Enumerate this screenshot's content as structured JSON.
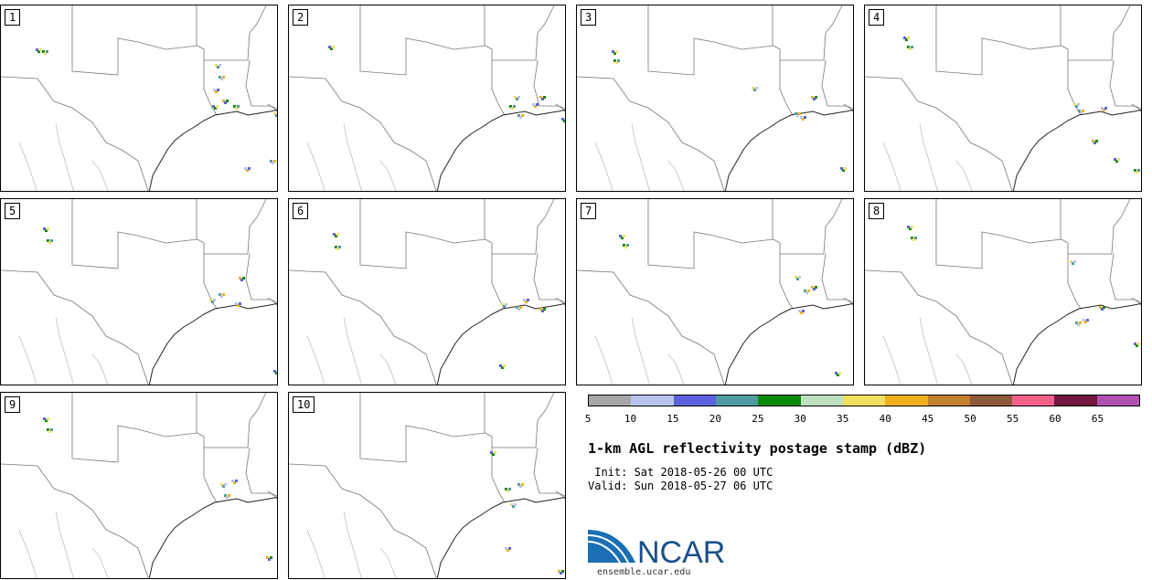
{
  "panels": [
    {
      "label": "1"
    },
    {
      "label": "2"
    },
    {
      "label": "3"
    },
    {
      "label": "4"
    },
    {
      "label": "5"
    },
    {
      "label": "6"
    },
    {
      "label": "7"
    },
    {
      "label": "8"
    },
    {
      "label": "9"
    },
    {
      "label": "10"
    }
  ],
  "colorbar": {
    "colors": [
      "#a6a6a6",
      "#b8c4ec",
      "#5b62dc",
      "#4f9aa0",
      "#0a8a0a",
      "#bfe0bf",
      "#f0e060",
      "#f0b020",
      "#c08030",
      "#8e5a3c",
      "#f0608a",
      "#70183e",
      "#b050b0"
    ],
    "ticks": [
      "5",
      "10",
      "15",
      "20",
      "25",
      "30",
      "35",
      "40",
      "45",
      "50",
      "55",
      "60",
      "65"
    ]
  },
  "title": "1-km AGL reflectivity postage stamp (dBZ)",
  "init_line": " Init: Sat 2018-05-26 00 UTC",
  "valid_line": "Valid: Sun 2018-05-27 06 UTC",
  "logo_text": "NCAR",
  "url": "ensemble.ucar.edu"
}
